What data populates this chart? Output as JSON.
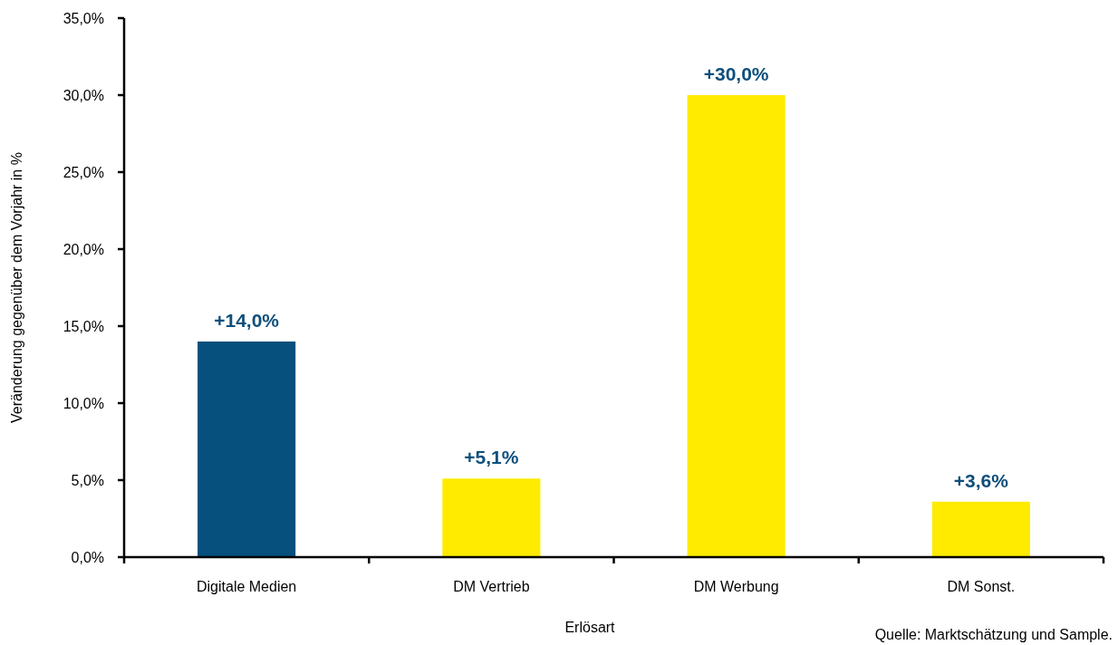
{
  "chart_data": {
    "type": "bar",
    "xlabel": "Erlösart",
    "ylabel": "Veränderung gegenüber dem Vorjahr in %",
    "categories": [
      "Digitale Medien",
      "DM Vertrieb",
      "DM Werbung",
      "DM Sonst."
    ],
    "values": [
      14.0,
      5.1,
      30.0,
      3.6
    ],
    "colors": [
      "#05507c",
      "#ffeb00",
      "#ffeb00",
      "#ffeb00"
    ],
    "value_labels": [
      "+14,0%",
      "+5,1%",
      "+30,0%",
      "+3,6%"
    ],
    "ylim": [
      0,
      35
    ],
    "yticks": [
      {
        "value": 0,
        "label": "0,0%"
      },
      {
        "value": 5,
        "label": "5,0%"
      },
      {
        "value": 10,
        "label": "10,0%"
      },
      {
        "value": 15,
        "label": "15,0%"
      },
      {
        "value": 20,
        "label": "20,0%"
      },
      {
        "value": 25,
        "label": "25,0%"
      },
      {
        "value": 30,
        "label": "30,0%"
      },
      {
        "value": 35,
        "label": "35,0%"
      }
    ],
    "annotations": [
      "Quelle: Marktschätzung und Sample."
    ]
  }
}
